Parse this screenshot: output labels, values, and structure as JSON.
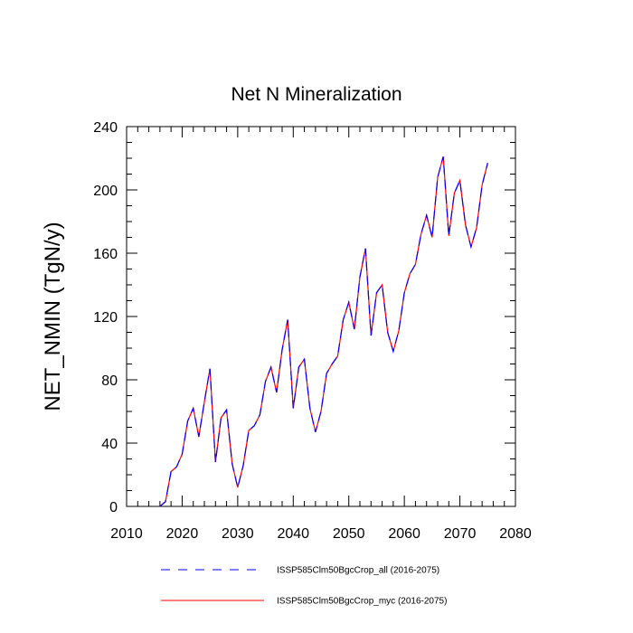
{
  "chart_data": {
    "type": "line",
    "title": "Net N Mineralization",
    "xlabel": "",
    "ylabel": "NET_NMIN  (TgN/y)",
    "xlim": [
      2010,
      2080
    ],
    "ylim": [
      0,
      240
    ],
    "x_ticks": [
      2010,
      2020,
      2030,
      2040,
      2050,
      2060,
      2070,
      2080
    ],
    "y_ticks": [
      0,
      40,
      80,
      120,
      160,
      200,
      240
    ],
    "grid": false,
    "legend_placement": "bottom",
    "x": [
      2016,
      2017,
      2018,
      2019,
      2020,
      2021,
      2022,
      2023,
      2024,
      2025,
      2026,
      2027,
      2028,
      2029,
      2030,
      2031,
      2032,
      2033,
      2034,
      2035,
      2036,
      2037,
      2038,
      2039,
      2040,
      2041,
      2042,
      2043,
      2044,
      2045,
      2046,
      2047,
      2048,
      2049,
      2050,
      2051,
      2052,
      2053,
      2054,
      2055,
      2056,
      2057,
      2058,
      2059,
      2060,
      2061,
      2062,
      2063,
      2064,
      2065,
      2066,
      2067,
      2068,
      2069,
      2070,
      2071,
      2072,
      2073,
      2074,
      2075
    ],
    "series": [
      {
        "name": "ISSP585Clm50BgcCrop_all (2016-2075)",
        "color": "#0000ff",
        "dash": "dashed",
        "values": [
          0,
          3,
          22,
          25,
          33,
          54,
          62,
          44,
          66,
          87,
          28,
          56,
          61,
          27,
          12,
          26,
          48,
          51,
          58,
          79,
          88,
          72,
          99,
          118,
          62,
          88,
          93,
          62,
          47,
          60,
          84,
          90,
          95,
          118,
          129,
          112,
          145,
          163,
          108,
          135,
          140,
          110,
          98,
          111,
          135,
          147,
          153,
          172,
          184,
          170,
          208,
          221,
          171,
          198,
          206,
          178,
          164,
          176,
          203,
          217
        ]
      },
      {
        "name": "ISSP585Clm50BgcCrop_myc (2016-2075)",
        "color": "#ff0000",
        "dash": "solid",
        "values": [
          0,
          3,
          22,
          25,
          33,
          54,
          62,
          44,
          66,
          87,
          28,
          56,
          61,
          27,
          12,
          26,
          48,
          51,
          58,
          79,
          88,
          72,
          99,
          118,
          62,
          88,
          93,
          62,
          47,
          60,
          84,
          90,
          95,
          118,
          129,
          112,
          145,
          163,
          108,
          135,
          140,
          110,
          98,
          111,
          135,
          147,
          153,
          172,
          184,
          170,
          208,
          221,
          171,
          198,
          206,
          178,
          164,
          176,
          203,
          217
        ]
      }
    ]
  }
}
